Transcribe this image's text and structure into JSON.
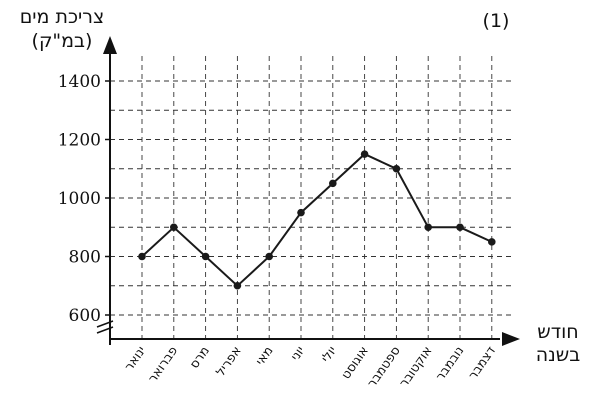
{
  "figure_number": "(1)",
  "chart_data": {
    "type": "line",
    "ylabel_line1": "צריכת מים",
    "ylabel_line2": "(במ\"ק)",
    "xlabel_line1": "חודש",
    "xlabel_line2": "בשנה",
    "yticks": [
      600,
      800,
      1000,
      1200,
      1400
    ],
    "ylim": [
      500,
      1500
    ],
    "grid": true,
    "categories": [
      "ינואר",
      "פברואר",
      "מרס",
      "אפריל",
      "מאי",
      "יוני",
      "יולי",
      "אוגוסט",
      "ספטמבר",
      "אוקטובר",
      "נובמבר",
      "דצמבר"
    ],
    "values": [
      800,
      900,
      800,
      700,
      800,
      950,
      1050,
      1150,
      1100,
      900,
      900,
      850
    ],
    "axis_break": true
  }
}
